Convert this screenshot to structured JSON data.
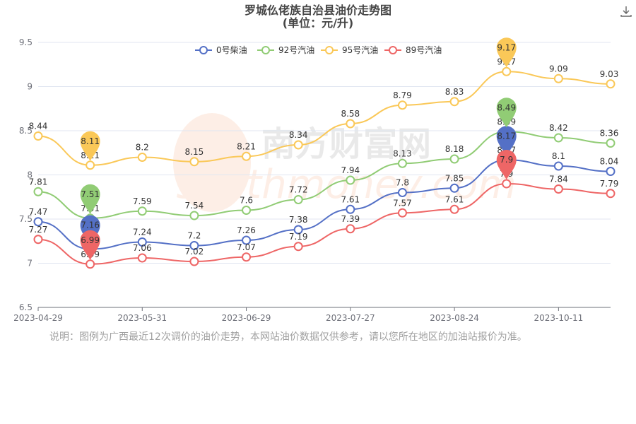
{
  "toolbar": {
    "download_icon": "download-icon"
  },
  "note": "说明：图例为广西最近12次调价的油价走势，本网站油价数据仅供参考，请以您所在地区的加油站报价为准。",
  "watermark": {
    "cn": "南方财富网",
    "en": "southmoney.com"
  },
  "colors": {
    "diesel0": "#5470c6",
    "gas92": "#91cc75",
    "gas95": "#fac858",
    "gas89": "#ee6666"
  },
  "chart_data": {
    "type": "line",
    "title": "罗城仫佬族自治县油价走势图",
    "subtitle": "(单位：元/升)",
    "ylim": [
      6.5,
      9.5
    ],
    "yticks": [
      6.5,
      7,
      7.5,
      8,
      8.5,
      9,
      9.5
    ],
    "x_tick_labels": [
      "2023-04-29",
      "2023-05-31",
      "2023-06-29",
      "2023-07-27",
      "2023-08-24",
      "2023-10-11"
    ],
    "legend_position": "top-center",
    "series": [
      {
        "name": "0号柴油",
        "color": "#5470c6",
        "values": [
          7.47,
          7.16,
          7.24,
          7.2,
          7.26,
          7.38,
          7.61,
          7.8,
          7.85,
          8.17,
          8.1,
          8.04
        ],
        "max_index": 9,
        "min_index": 1
      },
      {
        "name": "92号汽油",
        "color": "#91cc75",
        "values": [
          7.81,
          7.51,
          7.59,
          7.54,
          7.6,
          7.72,
          7.94,
          8.13,
          8.18,
          8.49,
          8.42,
          8.36
        ],
        "max_index": 9,
        "min_index": 1
      },
      {
        "name": "95号汽油",
        "color": "#fac858",
        "values": [
          8.44,
          8.11,
          8.2,
          8.15,
          8.21,
          8.34,
          8.58,
          8.79,
          8.83,
          9.17,
          9.09,
          9.03
        ],
        "max_index": 9,
        "min_index": 1
      },
      {
        "name": "89号汽油",
        "color": "#ee6666",
        "values": [
          7.27,
          6.99,
          7.06,
          7.02,
          7.07,
          7.19,
          7.39,
          7.57,
          7.61,
          7.9,
          7.84,
          7.79
        ],
        "max_index": 9,
        "min_index": 1
      }
    ]
  }
}
